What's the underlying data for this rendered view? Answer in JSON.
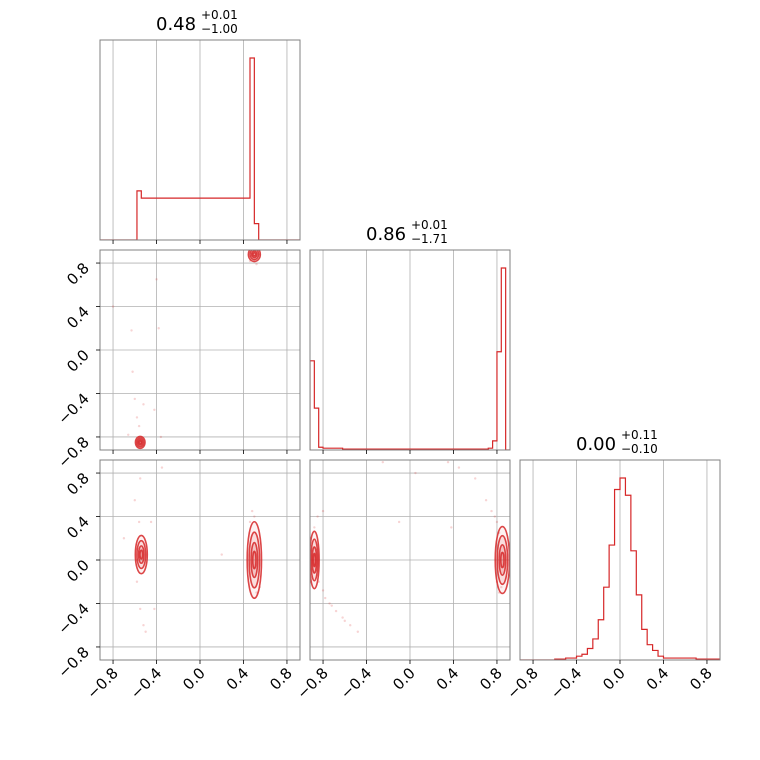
{
  "chart_data": [
    {
      "type": "histogram",
      "panel": "marginal-1",
      "title": {
        "value": "0.48",
        "plus": "+0.01",
        "minus": "−1.00"
      },
      "xlim": [
        -0.92,
        0.92
      ],
      "grid": true,
      "color": "#d62728",
      "bins": [
        {
          "x0": -0.58,
          "x1": -0.54,
          "value": 0.27
        },
        {
          "x0": -0.54,
          "x1": -0.5,
          "value": 0.23
        },
        {
          "x0": 0.46,
          "x1": 0.5,
          "value": 1.0
        },
        {
          "x0": 0.5,
          "x1": 0.54,
          "value": 0.09
        }
      ]
    },
    {
      "type": "histogram",
      "panel": "marginal-2",
      "title": {
        "value": "0.86",
        "plus": "+0.01",
        "minus": "−1.71"
      },
      "xlim": [
        -0.92,
        0.92
      ],
      "grid": true,
      "color": "#d62728",
      "bins": [
        {
          "x0": -0.92,
          "x1": -0.88,
          "value": 0.49
        },
        {
          "x0": -0.88,
          "x1": -0.84,
          "value": 0.23
        },
        {
          "x0": -0.84,
          "x1": -0.8,
          "value": 0.015
        },
        {
          "x0": -0.8,
          "x1": -0.62,
          "value": 0.01
        },
        {
          "x0": -0.62,
          "x1": 0.72,
          "value": 0.005
        },
        {
          "x0": 0.72,
          "x1": 0.76,
          "value": 0.01
        },
        {
          "x0": 0.76,
          "x1": 0.8,
          "value": 0.05
        },
        {
          "x0": 0.8,
          "x1": 0.84,
          "value": 0.54
        },
        {
          "x0": 0.84,
          "x1": 0.88,
          "value": 1.0
        }
      ]
    },
    {
      "type": "histogram",
      "panel": "marginal-3",
      "title": {
        "value": "0.00",
        "plus": "+0.11",
        "minus": "−0.10"
      },
      "xlim": [
        -0.92,
        0.92
      ],
      "grid": true,
      "color": "#d62728",
      "bins": [
        {
          "x0": -0.6,
          "x1": -0.5,
          "value": 0.005
        },
        {
          "x0": -0.5,
          "x1": -0.4,
          "value": 0.01
        },
        {
          "x0": -0.4,
          "x1": -0.35,
          "value": 0.02
        },
        {
          "x0": -0.35,
          "x1": -0.3,
          "value": 0.03
        },
        {
          "x0": -0.3,
          "x1": -0.25,
          "value": 0.06
        },
        {
          "x0": -0.25,
          "x1": -0.2,
          "value": 0.11
        },
        {
          "x0": -0.2,
          "x1": -0.15,
          "value": 0.21
        },
        {
          "x0": -0.15,
          "x1": -0.1,
          "value": 0.38
        },
        {
          "x0": -0.1,
          "x1": -0.05,
          "value": 0.6
        },
        {
          "x0": -0.05,
          "x1": 0.0,
          "value": 0.89
        },
        {
          "x0": 0.0,
          "x1": 0.05,
          "value": 0.95
        },
        {
          "x0": 0.05,
          "x1": 0.1,
          "value": 0.86
        },
        {
          "x0": 0.1,
          "x1": 0.15,
          "value": 0.57
        },
        {
          "x0": 0.15,
          "x1": 0.2,
          "value": 0.34
        },
        {
          "x0": 0.2,
          "x1": 0.25,
          "value": 0.16
        },
        {
          "x0": 0.25,
          "x1": 0.3,
          "value": 0.08
        },
        {
          "x0": 0.3,
          "x1": 0.35,
          "value": 0.05
        },
        {
          "x0": 0.35,
          "x1": 0.4,
          "value": 0.02
        },
        {
          "x0": 0.4,
          "x1": 0.6,
          "value": 0.01
        },
        {
          "x0": 0.7,
          "x1": 0.92,
          "value": 0.005
        }
      ]
    },
    {
      "type": "scatter",
      "panel": "joint-2-1",
      "xlim": [
        -0.92,
        0.92
      ],
      "ylim": [
        -0.92,
        0.92
      ],
      "grid": true,
      "color": "#d62728",
      "contour_blobs": [
        {
          "x": 0.5,
          "y": 0.88,
          "sx": 0.025,
          "sy": 0.03
        },
        {
          "x": -0.55,
          "y": -0.85,
          "sx": 0.02,
          "sy": 0.025
        }
      ],
      "points": [
        [
          -0.8,
          0.4
        ],
        [
          -0.63,
          0.18
        ],
        [
          -0.4,
          0.65
        ],
        [
          -0.38,
          0.2
        ],
        [
          -0.62,
          -0.2
        ],
        [
          -0.6,
          -0.45
        ],
        [
          -0.58,
          -0.62
        ],
        [
          -0.56,
          -0.7
        ],
        [
          -0.66,
          -0.78
        ],
        [
          -0.52,
          -0.5
        ],
        [
          -0.36,
          -0.8
        ],
        [
          -0.42,
          -0.55
        ],
        [
          0.5,
          0.83
        ],
        [
          0.52,
          0.79
        ],
        [
          0.46,
          0.82
        ]
      ]
    },
    {
      "type": "scatter",
      "panel": "joint-3-1",
      "xlim": [
        -0.92,
        0.92
      ],
      "ylim": [
        -0.92,
        0.92
      ],
      "grid": true,
      "color": "#d62728",
      "contour_blobs": [
        {
          "x": -0.54,
          "y": 0.05,
          "sx": 0.025,
          "sy": 0.08
        },
        {
          "x": 0.5,
          "y": 0.0,
          "sx": 0.03,
          "sy": 0.16
        }
      ],
      "points": [
        [
          -0.56,
          0.35
        ],
        [
          -0.58,
          -0.2
        ],
        [
          -0.55,
          -0.45
        ],
        [
          -0.52,
          -0.6
        ],
        [
          -0.5,
          -0.66
        ],
        [
          -0.6,
          0.55
        ],
        [
          -0.55,
          0.75
        ],
        [
          -0.35,
          0.85
        ],
        [
          -0.45,
          0.35
        ],
        [
          -0.42,
          -0.45
        ],
        [
          -0.7,
          0.2
        ],
        [
          0.48,
          0.45
        ],
        [
          0.5,
          0.4
        ],
        [
          0.52,
          -0.3
        ],
        [
          0.5,
          -0.35
        ],
        [
          0.2,
          0.05
        ],
        [
          0.55,
          -0.25
        ],
        [
          0.46,
          0.35
        ]
      ]
    },
    {
      "type": "scatter",
      "panel": "joint-3-2",
      "xlim": [
        -0.92,
        0.92
      ],
      "ylim": [
        -0.92,
        0.92
      ],
      "grid": true,
      "color": "#d62728",
      "contour_blobs": [
        {
          "x": -0.88,
          "y": 0.0,
          "sx": 0.02,
          "sy": 0.12
        },
        {
          "x": 0.85,
          "y": 0.0,
          "sx": 0.03,
          "sy": 0.14
        }
      ],
      "points": [
        [
          -0.78,
          -0.35
        ],
        [
          -0.74,
          -0.4
        ],
        [
          -0.68,
          -0.47
        ],
        [
          -0.62,
          -0.53
        ],
        [
          -0.55,
          -0.6
        ],
        [
          -0.48,
          -0.66
        ],
        [
          -0.84,
          -0.2
        ],
        [
          -0.8,
          -0.28
        ],
        [
          -0.72,
          -0.42
        ],
        [
          -0.6,
          -0.56
        ],
        [
          -0.88,
          0.3
        ],
        [
          -0.85,
          0.4
        ],
        [
          -0.8,
          0.45
        ],
        [
          0.75,
          0.45
        ],
        [
          0.78,
          0.4
        ],
        [
          0.8,
          0.35
        ],
        [
          0.82,
          0.25
        ],
        [
          0.84,
          -0.25
        ],
        [
          0.82,
          -0.3
        ],
        [
          0.7,
          0.55
        ],
        [
          0.6,
          0.75
        ],
        [
          0.45,
          0.85
        ],
        [
          0.35,
          0.9
        ],
        [
          -0.25,
          0.9
        ],
        [
          0.05,
          0.8
        ],
        [
          -0.1,
          0.35
        ],
        [
          0.38,
          0.3
        ],
        [
          0.8,
          -0.2
        ]
      ]
    }
  ],
  "axes": {
    "x_ticks": [
      "−0.8",
      "−0.4",
      "0.0",
      "0.4",
      "0.8"
    ],
    "y_ticks": [
      "0.8",
      "0.4",
      "0.0",
      "−0.4",
      "−0.8"
    ]
  },
  "colors": {
    "series": "#d62728",
    "grid": "#b0b0b0",
    "axis": "#808080"
  }
}
